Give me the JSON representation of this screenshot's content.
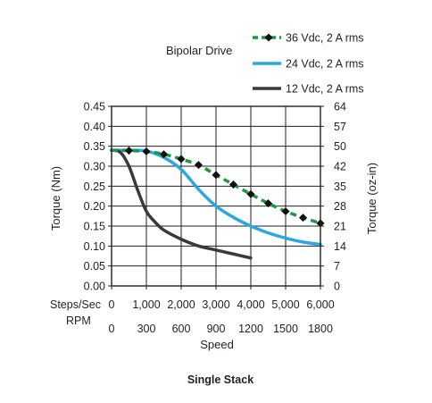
{
  "chart_data": {
    "type": "line",
    "title": "Bipolar Drive",
    "caption": "Single Stack",
    "xlabel": "Speed",
    "ylabel_left": "Torque (Nm)",
    "ylabel_right": "Torque (oz-in)",
    "x_unit_label": "Steps/Sec",
    "x2_unit_label": "RPM",
    "xlim": [
      0,
      6000
    ],
    "ylim": [
      0,
      0.45
    ],
    "x_ticks": [
      "0",
      "1,000",
      "2,000",
      "3,000",
      "4,000",
      "5,000",
      "6,000"
    ],
    "x2_ticks": [
      "0",
      "300",
      "600",
      "900",
      "1200",
      "1500",
      "1800"
    ],
    "y_ticks_left": [
      "0.00",
      "0.05",
      "0.10",
      "0.15",
      "0.20",
      "0.25",
      "0.30",
      "0.35",
      "0.40",
      "0.45"
    ],
    "y_ticks_right": [
      "0",
      "7",
      "14",
      "21",
      "28",
      "35",
      "42",
      "50",
      "57",
      "64"
    ],
    "grid": true,
    "legend_position": "top-right",
    "series": [
      {
        "name": "36 Vdc, 2 A rms",
        "color": "#1a9a3c",
        "style": "dashed-diamond",
        "x": [
          0,
          500,
          1000,
          1500,
          2000,
          2500,
          3000,
          3500,
          4000,
          4500,
          5000,
          5500,
          6000
        ],
        "y": [
          0.34,
          0.339,
          0.337,
          0.33,
          0.318,
          0.303,
          0.278,
          0.254,
          0.23,
          0.207,
          0.187,
          0.171,
          0.157
        ]
      },
      {
        "name": "24 Vdc, 2 A rms",
        "color": "#2ba8e0",
        "style": "solid",
        "x": [
          0,
          500,
          1000,
          1500,
          2000,
          2500,
          3000,
          3500,
          4000,
          4500,
          5000,
          5500,
          6000
        ],
        "y": [
          0.34,
          0.34,
          0.338,
          0.322,
          0.292,
          0.242,
          0.2,
          0.172,
          0.15,
          0.133,
          0.12,
          0.11,
          0.104
        ]
      },
      {
        "name": "12 Vdc, 2 A rms",
        "color": "#3a3a3a",
        "style": "solid",
        "x": [
          0,
          250,
          500,
          750,
          1000,
          1250,
          1500,
          2000,
          2500,
          3000,
          3500,
          4000
        ],
        "y": [
          0.34,
          0.335,
          0.3,
          0.24,
          0.187,
          0.16,
          0.14,
          0.117,
          0.1,
          0.09,
          0.08,
          0.07
        ]
      }
    ]
  }
}
